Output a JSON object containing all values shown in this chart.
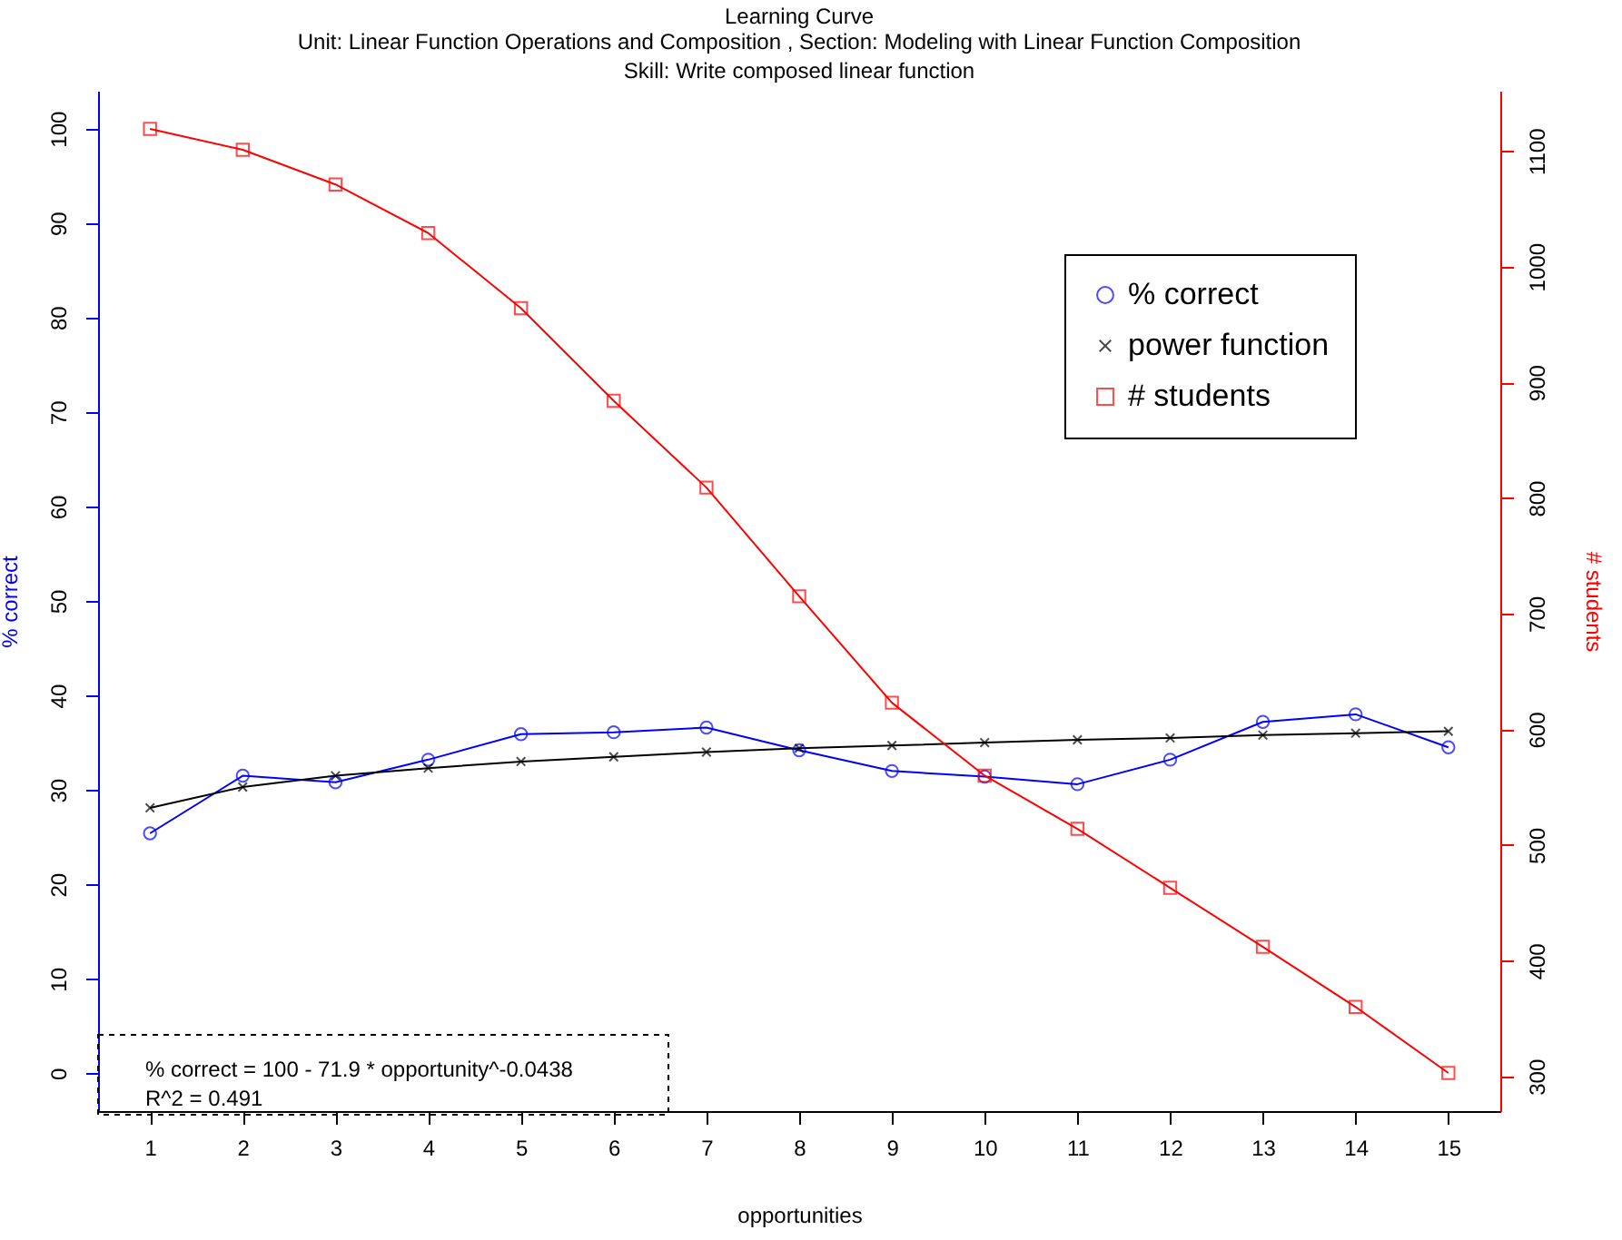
{
  "chart_data": {
    "type": "line",
    "title": "Learning Curve",
    "subtitle": "Unit:  Linear Function Operations and Composition , Section:  Modeling with Linear Function Composition\nSkill:  Write composed linear function",
    "xlabel": "opportunities",
    "ylabel": "% correct",
    "y2label": "# students",
    "x": [
      1,
      2,
      3,
      4,
      5,
      6,
      7,
      8,
      9,
      10,
      11,
      12,
      13,
      14,
      15
    ],
    "xlim": [
      0.44,
      15.56
    ],
    "xticks": [
      1,
      2,
      3,
      4,
      5,
      6,
      7,
      8,
      9,
      10,
      11,
      12,
      13,
      14,
      15
    ],
    "ylim": [
      -4,
      104
    ],
    "yticks": [
      0,
      10,
      20,
      30,
      40,
      50,
      60,
      70,
      80,
      90,
      100
    ],
    "y2lim": [
      270,
      1152
    ],
    "y2ticks": [
      300,
      400,
      500,
      600,
      700,
      800,
      900,
      1000,
      1100
    ],
    "legend": "top right",
    "grid": false,
    "line_style": "solid",
    "annotations": [
      "% correct = 100 - 71.9 * opportunity^-0.0438",
      "R^2 = 0.491"
    ],
    "series": [
      {
        "name": "% correct",
        "color": "#0000ff",
        "marker": "circle",
        "values": [
          25.4,
          31.5,
          30.8,
          33.2,
          35.9,
          36.1,
          36.6,
          34.2,
          32.0,
          31.4,
          30.6,
          33.2,
          37.2,
          38.0,
          34.5
        ]
      },
      {
        "name": "power function",
        "color": "#000000",
        "marker": "cross",
        "values": [
          28.1,
          30.3,
          31.5,
          32.3,
          33.0,
          33.5,
          34.0,
          34.4,
          34.7,
          35.0,
          35.3,
          35.5,
          35.8,
          36.0,
          36.2
        ]
      },
      {
        "name": "# students",
        "color": "#ff0000",
        "marker": "square",
        "axis": "y2",
        "values": [
          1119,
          1101,
          1071,
          1029,
          964,
          884,
          809,
          715,
          623,
          560,
          514,
          463,
          412,
          360,
          303
        ]
      }
    ]
  }
}
